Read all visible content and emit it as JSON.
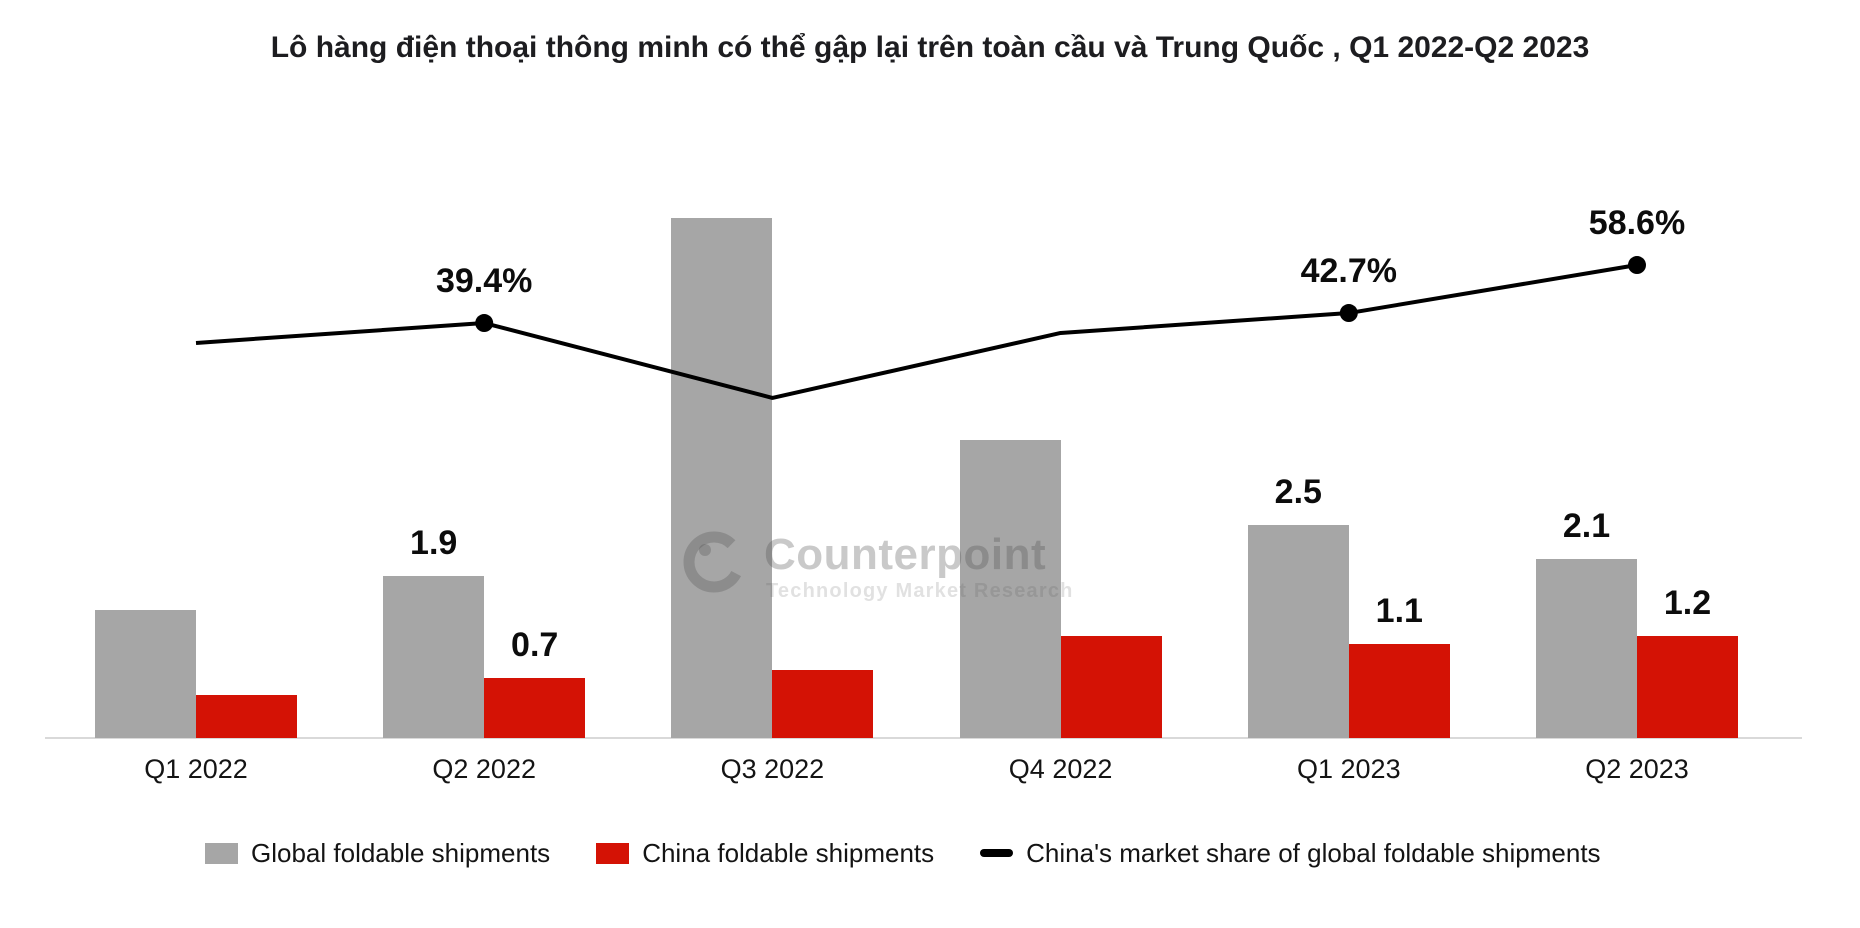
{
  "page": {
    "title": "Lô hàng điện thoại thông minh có thể gập lại trên toàn cầu và Trung Quốc , Q1 2022-Q2 2023",
    "title_color": "#1d1d20",
    "background": "#ffffff"
  },
  "watermark": {
    "brand": "Counterpoint",
    "tagline": "Technology Market Research",
    "color": "#c9c9c9"
  },
  "chart_data": {
    "type": "combo-bar-line",
    "title": "Lô hàng điện thoại thông minh có thể gập lại trên toàn cầu và Trung Quốc , Q1 2022-Q2 2023",
    "categories": [
      "Q1 2022",
      "Q2 2022",
      "Q3 2022",
      "Q4 2022",
      "Q1 2023",
      "Q2 2023"
    ],
    "series": [
      {
        "name": "Global foldable shipments",
        "type": "bar",
        "color": "#a6a6a6",
        "values": [
          1.5,
          1.9,
          6.1,
          3.5,
          2.5,
          2.1
        ],
        "data_labels": [
          null,
          "1.9",
          null,
          null,
          "2.5",
          "2.1"
        ],
        "estimated_indices": [
          0,
          2,
          3
        ]
      },
      {
        "name": "China foldable shipments",
        "type": "bar",
        "color": "#d41205",
        "values": [
          0.5,
          0.7,
          0.8,
          1.2,
          1.1,
          1.2
        ],
        "data_labels": [
          null,
          "0.7",
          null,
          null,
          "1.1",
          "1.2"
        ],
        "estimated_indices": [
          0,
          2,
          3
        ]
      },
      {
        "name": "China's market share of global foldable shipments",
        "type": "line",
        "color": "#000000",
        "values": [
          32.8,
          39.4,
          14.6,
          36.1,
          42.7,
          58.6
        ],
        "data_labels": [
          null,
          "39.4%",
          null,
          null,
          "42.7%",
          "58.6%"
        ],
        "markers": [
          false,
          true,
          false,
          false,
          true,
          true
        ],
        "estimated_indices": [
          0,
          2,
          3
        ]
      }
    ],
    "xlabel": "",
    "ylabel": "",
    "axes": {
      "y_axis_visible": false,
      "gridlines": false,
      "bar_axis_range": [
        0,
        6.5
      ],
      "line_axis_range_pct": [
        0,
        65
      ]
    },
    "legend_position": "bottom"
  }
}
